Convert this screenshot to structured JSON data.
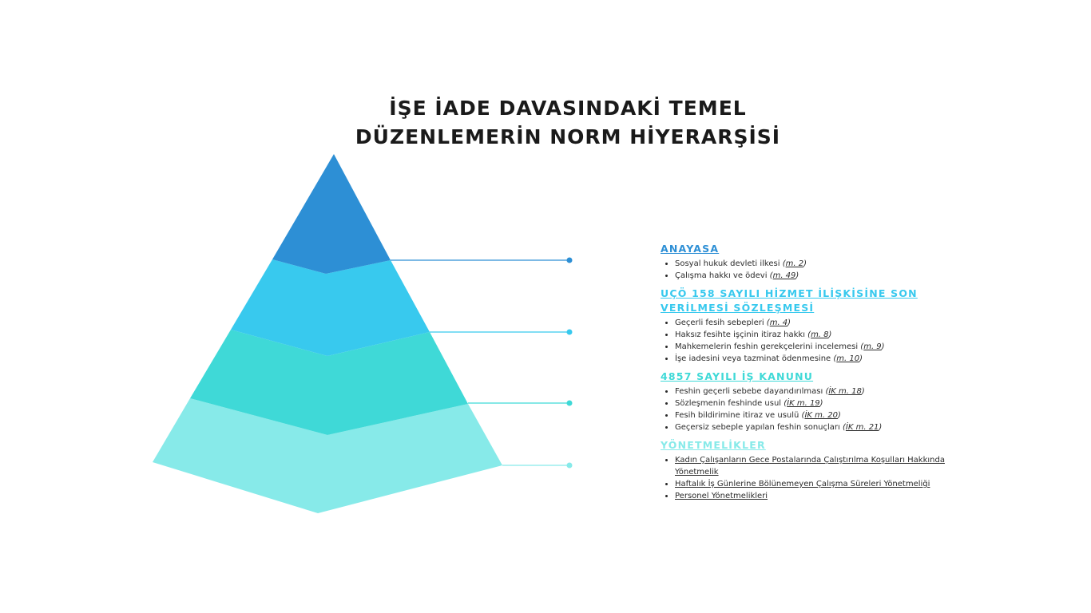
{
  "title": {
    "line1": "İŞE İADE DAVASINDAKİ TEMEL",
    "line2": "DÜZENLEMERİN NORM HİYERARŞİSİ"
  },
  "colors": {
    "level1": "#2d8fd5",
    "level2": "#38c9ee",
    "level3": "#3fd9d7",
    "level4": "#87eae9"
  },
  "sections": [
    {
      "heading": "ANAYASA",
      "items": [
        {
          "text": "Sosyal hukuk devleti ilkesi ",
          "ref": "m. 2"
        },
        {
          "text": "Çalışma hakkı ve ödevi ",
          "ref": "m. 49"
        }
      ]
    },
    {
      "heading": "UÇÖ 158 SAYILI HİZMET İLİŞKİSİNE SON VERİLMESİ SÖZLEŞMESİ",
      "items": [
        {
          "text": "Geçerli fesih sebepleri ",
          "ref": "m. 4"
        },
        {
          "text": "Haksız fesihte işçinin itiraz hakkı ",
          "ref": "m. 8"
        },
        {
          "text": "Mahkemelerin feshin gerekçelerini incelemesi ",
          "ref": "m. 9"
        },
        {
          "text": "İşe iadesini veya tazminat ödenmesine ",
          "ref": "m. 10"
        }
      ]
    },
    {
      "heading": "4857 SAYILI İŞ KANUNU",
      "items": [
        {
          "text": "Feshin geçerli sebebe dayandırılması ",
          "ref": "İK m. 18"
        },
        {
          "text": "Sözleşmenin feshinde usul ",
          "ref": "İK m. 19"
        },
        {
          "text": "Fesih bildirimine itiraz ve usulü ",
          "ref": "İK m. 20"
        },
        {
          "text": "Geçersiz sebeple yapılan feshin sonuçları ",
          "ref": "İK m. 21"
        }
      ]
    },
    {
      "heading": "YÖNETMELİKLER",
      "items": [
        {
          "text": "Kadın Çalışanların Gece Postalarında Çalıştırılma Koşulları Hakkında Yönetmelik"
        },
        {
          "text": "Haftalık İş Günlerine Bölünemeyen Çalışma Süreleri Yönetmeliği"
        },
        {
          "text": "Personel Yönetmelikleri "
        }
      ]
    }
  ]
}
